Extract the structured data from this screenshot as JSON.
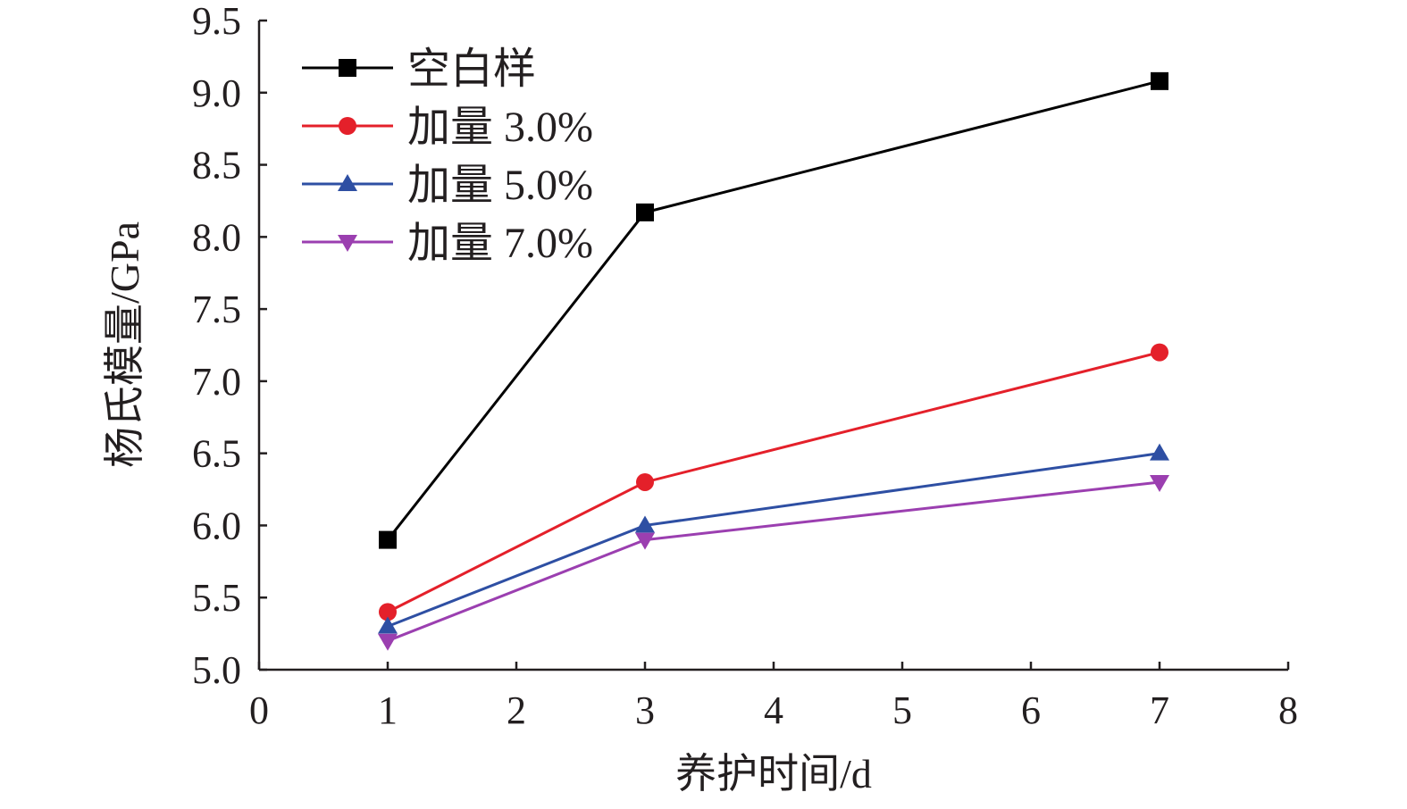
{
  "chart_data": {
    "type": "line",
    "title": "",
    "xlabel": "养护时间/d",
    "ylabel": "杨氏模量/GPa",
    "xlim": [
      0,
      8
    ],
    "ylim": [
      5.0,
      9.5
    ],
    "xticks": [
      "0",
      "1",
      "2",
      "3",
      "4",
      "5",
      "6",
      "7",
      "8"
    ],
    "yticks": [
      "5.0",
      "5.5",
      "6.0",
      "6.5",
      "7.0",
      "7.5",
      "8.0",
      "8.5",
      "9.0",
      "9.5"
    ],
    "grid": false,
    "legend_position": "top-left",
    "x": [
      1,
      3,
      7
    ],
    "series": [
      {
        "name": "空白样",
        "color": "#000000",
        "marker": "square",
        "values": [
          5.9,
          8.17,
          9.08
        ]
      },
      {
        "name": "加量 3.0%",
        "color": "#e4202a",
        "marker": "circle",
        "values": [
          5.4,
          6.3,
          7.2
        ]
      },
      {
        "name": "加量 5.0%",
        "color": "#2e4fa3",
        "marker": "triangle-up",
        "values": [
          5.3,
          6.0,
          6.5
        ]
      },
      {
        "name": "加量 7.0%",
        "color": "#9b3fb0",
        "marker": "triangle-down",
        "values": [
          5.2,
          5.9,
          6.3
        ]
      }
    ]
  }
}
